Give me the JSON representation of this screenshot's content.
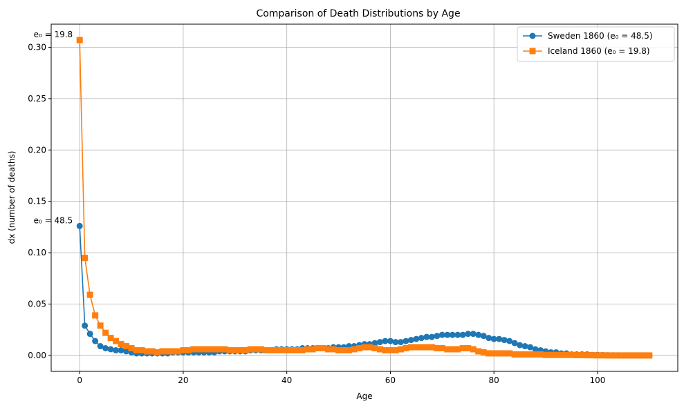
{
  "chart_data": {
    "type": "line",
    "title": "Comparison of Death Distributions by Age",
    "xlabel": "Age",
    "ylabel": "dx (number of deaths)",
    "xlim": [
      -5.5,
      115.5
    ],
    "ylim": [
      -0.0155,
      0.3225
    ],
    "x_ticks": [
      0,
      20,
      40,
      60,
      80,
      100
    ],
    "x_tick_labels": [
      "0",
      "20",
      "40",
      "60",
      "80",
      "100"
    ],
    "y_ticks": [
      0.0,
      0.05,
      0.1,
      0.15,
      0.2,
      0.25,
      0.3
    ],
    "y_tick_labels": [
      "0.00",
      "0.05",
      "0.10",
      "0.15",
      "0.20",
      "0.25",
      "0.30"
    ],
    "grid": true,
    "legend_position": "top-right",
    "annotations": [
      {
        "text": "e₀ = 19.8",
        "x": 0,
        "y": 0.307
      },
      {
        "text": "e₀ = 48.5",
        "x": 0,
        "y": 0.126
      }
    ],
    "x": [
      0,
      1,
      2,
      3,
      4,
      5,
      6,
      7,
      8,
      9,
      10,
      11,
      12,
      13,
      14,
      15,
      16,
      17,
      18,
      19,
      20,
      21,
      22,
      23,
      24,
      25,
      26,
      27,
      28,
      29,
      30,
      31,
      32,
      33,
      34,
      35,
      36,
      37,
      38,
      39,
      40,
      41,
      42,
      43,
      44,
      45,
      46,
      47,
      48,
      49,
      50,
      51,
      52,
      53,
      54,
      55,
      56,
      57,
      58,
      59,
      60,
      61,
      62,
      63,
      64,
      65,
      66,
      67,
      68,
      69,
      70,
      71,
      72,
      73,
      74,
      75,
      76,
      77,
      78,
      79,
      80,
      81,
      82,
      83,
      84,
      85,
      86,
      87,
      88,
      89,
      90,
      91,
      92,
      93,
      94,
      95,
      96,
      97,
      98,
      99,
      100,
      101,
      102,
      103,
      104,
      105,
      106,
      107,
      108,
      109,
      110
    ],
    "series": [
      {
        "name": "Sweden 1860 (e₀ = 48.5)",
        "color": "#1f77b4",
        "marker": "circle",
        "values": [
          0.126,
          0.029,
          0.021,
          0.014,
          0.009,
          0.007,
          0.006,
          0.005,
          0.005,
          0.004,
          0.003,
          0.002,
          0.002,
          0.002,
          0.002,
          0.002,
          0.002,
          0.002,
          0.003,
          0.003,
          0.003,
          0.003,
          0.003,
          0.003,
          0.003,
          0.003,
          0.003,
          0.004,
          0.004,
          0.004,
          0.004,
          0.004,
          0.004,
          0.005,
          0.005,
          0.005,
          0.005,
          0.005,
          0.006,
          0.006,
          0.006,
          0.006,
          0.006,
          0.007,
          0.007,
          0.007,
          0.007,
          0.007,
          0.007,
          0.008,
          0.008,
          0.008,
          0.009,
          0.009,
          0.01,
          0.011,
          0.011,
          0.012,
          0.013,
          0.014,
          0.014,
          0.013,
          0.013,
          0.014,
          0.015,
          0.016,
          0.017,
          0.018,
          0.018,
          0.019,
          0.02,
          0.02,
          0.02,
          0.02,
          0.02,
          0.021,
          0.021,
          0.02,
          0.019,
          0.017,
          0.016,
          0.016,
          0.015,
          0.014,
          0.012,
          0.01,
          0.009,
          0.008,
          0.006,
          0.005,
          0.004,
          0.003,
          0.003,
          0.002,
          0.002,
          0.001,
          0.001,
          0.001,
          0.001,
          0.0005,
          0.0005,
          0.0003,
          0.0002,
          0.0001,
          0.0001,
          0,
          0,
          0,
          0,
          0,
          0
        ]
      },
      {
        "name": "Iceland 1860 (e₀ = 19.8)",
        "color": "#ff7f0e",
        "marker": "square",
        "values": [
          0.307,
          0.095,
          0.059,
          0.039,
          0.029,
          0.022,
          0.017,
          0.014,
          0.011,
          0.009,
          0.007,
          0.005,
          0.005,
          0.004,
          0.004,
          0.003,
          0.004,
          0.004,
          0.004,
          0.004,
          0.005,
          0.005,
          0.006,
          0.006,
          0.006,
          0.006,
          0.006,
          0.006,
          0.006,
          0.005,
          0.005,
          0.005,
          0.005,
          0.006,
          0.006,
          0.006,
          0.005,
          0.005,
          0.005,
          0.005,
          0.005,
          0.005,
          0.005,
          0.005,
          0.006,
          0.006,
          0.007,
          0.007,
          0.006,
          0.006,
          0.005,
          0.005,
          0.005,
          0.006,
          0.007,
          0.008,
          0.008,
          0.007,
          0.006,
          0.005,
          0.005,
          0.005,
          0.006,
          0.007,
          0.008,
          0.008,
          0.008,
          0.008,
          0.008,
          0.007,
          0.007,
          0.006,
          0.006,
          0.006,
          0.007,
          0.007,
          0.006,
          0.004,
          0.003,
          0.002,
          0.002,
          0.002,
          0.002,
          0.002,
          0.001,
          0.001,
          0.001,
          0.001,
          0.001,
          0.001,
          0.0005,
          0.0005,
          0.0005,
          0.0005,
          0.0005,
          0.0005,
          0.0003,
          0.0003,
          0.0002,
          0.0002,
          0.0001,
          0.0001,
          0,
          0,
          0,
          0,
          0,
          0,
          0,
          0,
          0
        ]
      }
    ]
  }
}
